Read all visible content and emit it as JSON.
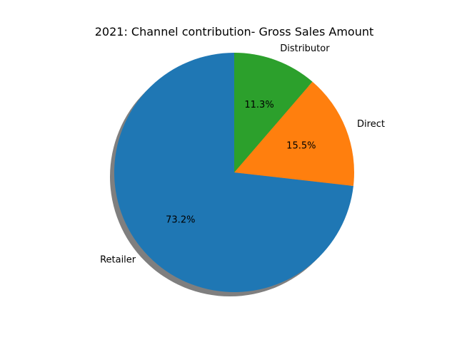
{
  "chart_data": {
    "type": "pie",
    "title": "2021: Channel contribution- Gross Sales Amount",
    "labels": [
      "Retailer",
      "Direct",
      "Distributor"
    ],
    "values": [
      73.2,
      15.5,
      11.3
    ],
    "value_labels": [
      "73.2%",
      "15.5%",
      "11.3%"
    ],
    "colors": [
      "#1f77b4",
      "#ff7f0e",
      "#2ca02c"
    ],
    "start_angle_deg": 90,
    "direction": "counterclockwise",
    "shadow": true,
    "legend": "none"
  }
}
